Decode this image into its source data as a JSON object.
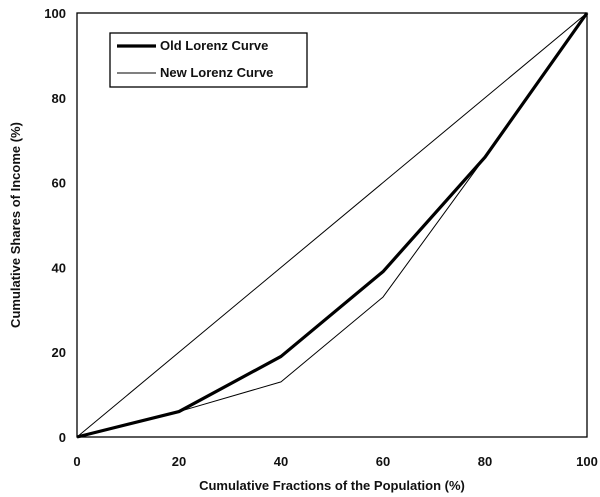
{
  "chart_data": {
    "type": "line",
    "title": "",
    "xlabel": "Cumulative Fractions of the Population (%)",
    "ylabel": "Cumulative Shares of Income (%)",
    "xlim": [
      0,
      100
    ],
    "ylim": [
      0,
      100
    ],
    "xticks": [
      0,
      20,
      40,
      60,
      80,
      100
    ],
    "yticks": [
      0,
      20,
      40,
      60,
      80,
      100
    ],
    "grid": false,
    "legend_position": "top-left",
    "series": [
      {
        "name": "Old Lorenz Curve",
        "line_style": "thick",
        "color": "#000000",
        "x": [
          0,
          20,
          40,
          60,
          80,
          100
        ],
        "y": [
          0,
          6,
          19,
          39,
          66,
          100
        ]
      },
      {
        "name": "New Lorenz Curve",
        "line_style": "thin",
        "color": "#000000",
        "x": [
          0,
          20,
          40,
          60,
          80,
          100
        ],
        "y": [
          0,
          6,
          13,
          33,
          66,
          100
        ]
      },
      {
        "name": "",
        "line_style": "thin",
        "color": "#000000",
        "x": [
          0,
          100
        ],
        "y": [
          0,
          100
        ]
      }
    ]
  }
}
